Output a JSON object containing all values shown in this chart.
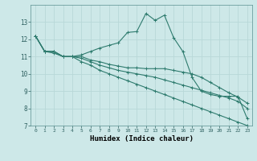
{
  "xlabel": "Humidex (Indice chaleur)",
  "background_color": "#cde8e8",
  "grid_color": "#b8d8d8",
  "line_color": "#2e7b6e",
  "xlim": [
    -0.5,
    23.5
  ],
  "ylim": [
    7,
    14
  ],
  "yticks": [
    7,
    8,
    9,
    10,
    11,
    12,
    13
  ],
  "xticks": [
    0,
    1,
    2,
    3,
    4,
    5,
    6,
    7,
    8,
    9,
    10,
    11,
    12,
    13,
    14,
    15,
    16,
    17,
    18,
    19,
    20,
    21,
    22,
    23
  ],
  "series": [
    [
      12.2,
      11.3,
      11.3,
      11.0,
      11.0,
      11.1,
      11.3,
      11.5,
      11.65,
      11.8,
      12.4,
      12.45,
      13.5,
      13.1,
      13.4,
      12.1,
      11.3,
      9.8,
      9.0,
      8.8,
      8.7,
      8.7,
      8.7,
      7.4
    ],
    [
      12.2,
      11.3,
      11.3,
      11.0,
      11.0,
      11.0,
      10.8,
      10.7,
      10.55,
      10.45,
      10.35,
      10.35,
      10.3,
      10.3,
      10.3,
      10.2,
      10.1,
      10.0,
      9.8,
      9.5,
      9.2,
      8.9,
      8.65,
      8.3
    ],
    [
      12.2,
      11.3,
      11.3,
      11.0,
      11.0,
      10.9,
      10.7,
      10.5,
      10.35,
      10.2,
      10.1,
      10.0,
      9.9,
      9.8,
      9.65,
      9.5,
      9.35,
      9.2,
      9.05,
      8.9,
      8.75,
      8.6,
      8.4,
      8.0
    ],
    [
      12.2,
      11.3,
      11.2,
      11.0,
      11.0,
      10.7,
      10.5,
      10.2,
      10.0,
      9.8,
      9.6,
      9.4,
      9.2,
      9.0,
      8.8,
      8.6,
      8.4,
      8.2,
      8.0,
      7.8,
      7.6,
      7.4,
      7.2,
      7.0
    ]
  ]
}
